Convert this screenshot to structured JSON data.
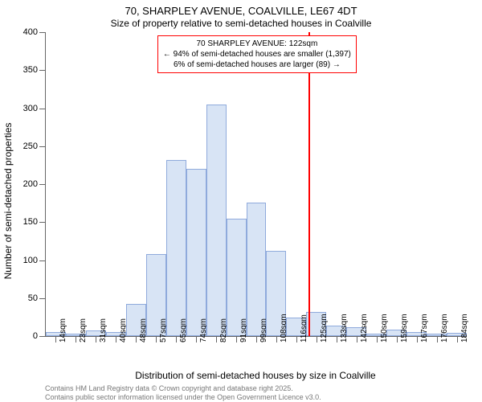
{
  "title_main": "70, SHARPLEY AVENUE, COALVILLE, LE67 4DT",
  "title_sub": "Size of property relative to semi-detached houses in Coalville",
  "yaxis_title": "Number of semi-detached properties",
  "xaxis_title": "Distribution of semi-detached houses by size in Coalville",
  "chart": {
    "type": "histogram",
    "ylim": [
      0,
      400
    ],
    "ytick_step": 50,
    "background_color": "#ffffff",
    "bar_fill": "#d8e4f5",
    "bar_border": "#8faadc",
    "marker_color": "#ff0000",
    "annotation_border": "#ff0000",
    "annotation_bg": "#ffffff",
    "label_fontsize": 11,
    "tick_fontsize": 10,
    "bars": [
      {
        "label": "14sqm",
        "value": 5
      },
      {
        "label": "23sqm",
        "value": 3
      },
      {
        "label": "31sqm",
        "value": 7
      },
      {
        "label": "40sqm",
        "value": 5
      },
      {
        "label": "48sqm",
        "value": 42
      },
      {
        "label": "57sqm",
        "value": 108
      },
      {
        "label": "65sqm",
        "value": 232
      },
      {
        "label": "74sqm",
        "value": 220
      },
      {
        "label": "82sqm",
        "value": 305
      },
      {
        "label": "91sqm",
        "value": 155
      },
      {
        "label": "99sqm",
        "value": 176
      },
      {
        "label": "108sqm",
        "value": 112
      },
      {
        "label": "116sqm",
        "value": 24
      },
      {
        "label": "125sqm",
        "value": 32
      },
      {
        "label": "133sqm",
        "value": 14
      },
      {
        "label": "142sqm",
        "value": 12
      },
      {
        "label": "150sqm",
        "value": 3
      },
      {
        "label": "159sqm",
        "value": 8
      },
      {
        "label": "167sqm",
        "value": 5
      },
      {
        "label": "176sqm",
        "value": 3
      },
      {
        "label": "184sqm",
        "value": 4
      }
    ],
    "marker_index": 12.6,
    "annotation_lines": [
      "70 SHARPLEY AVENUE: 122sqm",
      "← 94% of semi-detached houses are smaller (1,397)",
      "6% of semi-detached houses are larger (89) →"
    ]
  },
  "attribution_line1": "Contains HM Land Registry data © Crown copyright and database right 2025.",
  "attribution_line2": "Contains public sector information licensed under the Open Government Licence v3.0."
}
